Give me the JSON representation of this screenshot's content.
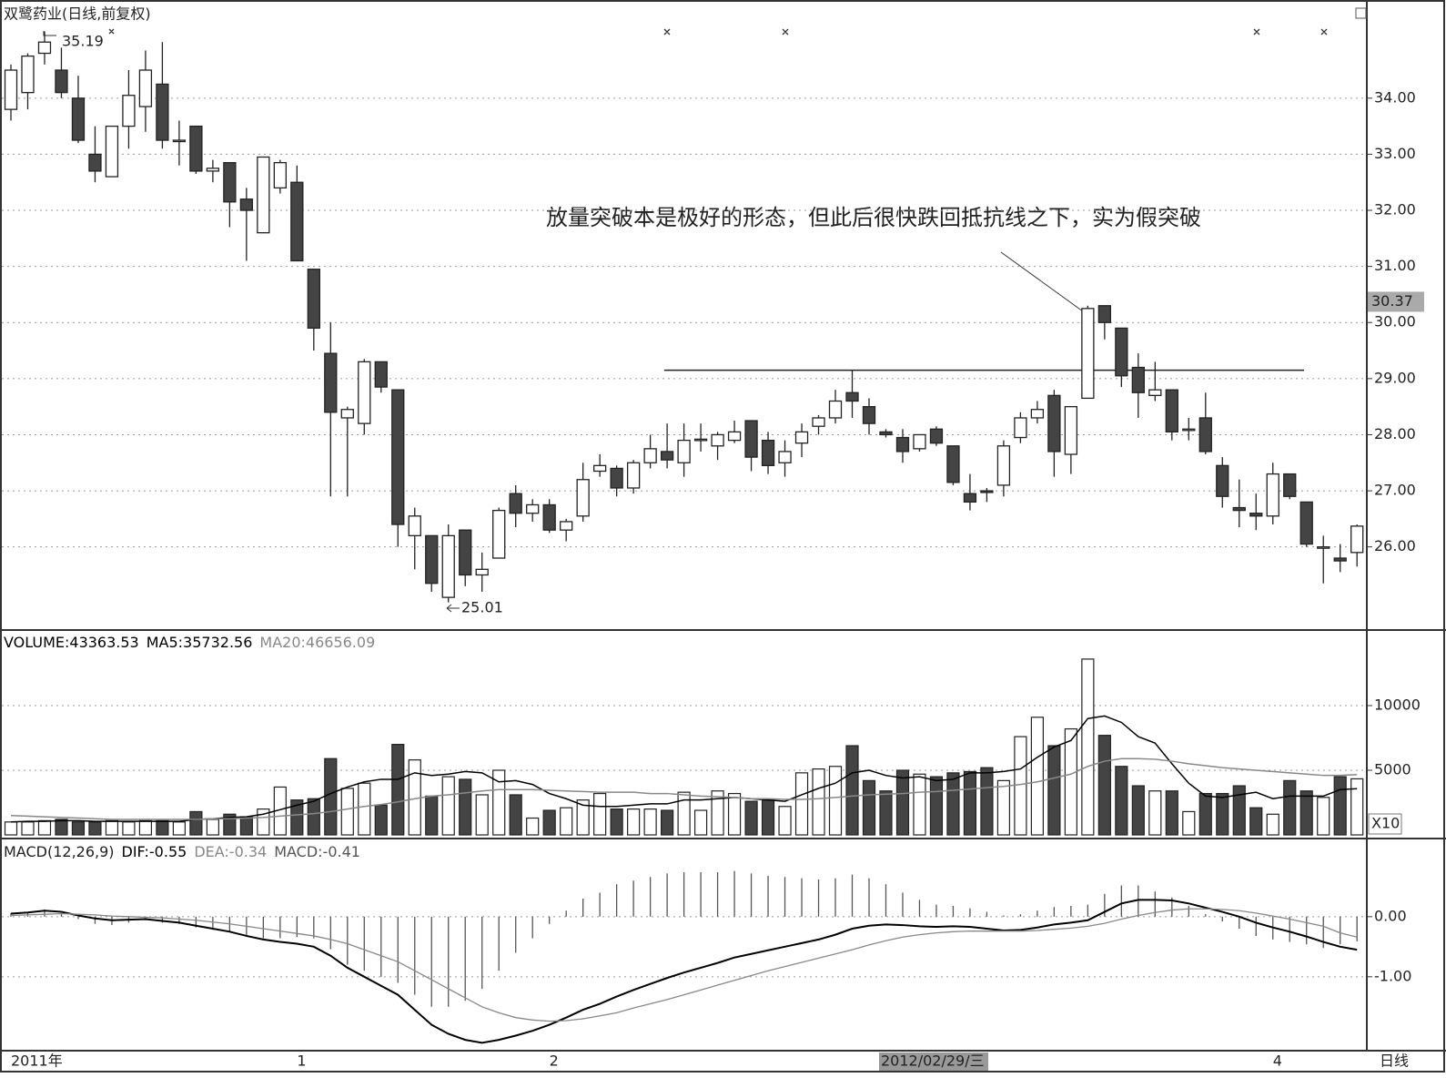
{
  "chart_data": [
    {
      "type": "candlestick",
      "title": "双鹭药业(日线,前复权)",
      "annotation": "放量突破本是极好的形态，但此后很快跌回抵抗线之下，实为假突破",
      "categories": [
        "2011年",
        null,
        null,
        null,
        null,
        null,
        null,
        null,
        null,
        null,
        null,
        null,
        null,
        null,
        null,
        null,
        null,
        "1",
        null,
        null,
        null,
        null,
        null,
        null,
        null,
        null,
        null,
        null,
        null,
        null,
        null,
        null,
        "2",
        null,
        null,
        null,
        null,
        null,
        null,
        null,
        null,
        null,
        null,
        null,
        null,
        null,
        null,
        null,
        null,
        null,
        null,
        null,
        null,
        null,
        null,
        null,
        null,
        null,
        null,
        null,
        null,
        null,
        null,
        null,
        null,
        null,
        null,
        null,
        null,
        null,
        null,
        null,
        null,
        null,
        null,
        "4",
        null,
        null,
        null,
        null,
        null
      ],
      "cursor_date": "2012/02/29/三",
      "period": "日线",
      "open": [
        33.8,
        34.1,
        34.8,
        34.5,
        34.0,
        33.0,
        32.6,
        33.5,
        33.85,
        34.25,
        33.25,
        33.5,
        32.7,
        32.85,
        32.2,
        31.6,
        32.4,
        32.5,
        30.95,
        29.45,
        28.3,
        28.2,
        29.3,
        28.8,
        26.2,
        26.2,
        25.1,
        26.3,
        25.5,
        25.8,
        26.95,
        26.6,
        26.75,
        26.3,
        26.55,
        27.35,
        27.4,
        27.05,
        27.5,
        27.7,
        27.5,
        27.92,
        27.8,
        27.9,
        28.25,
        27.9,
        27.5,
        27.85,
        28.15,
        28.3,
        28.75,
        28.5,
        28.05,
        27.95,
        27.75,
        28.1,
        27.8,
        26.95,
        27.0,
        27.1,
        27.95,
        28.3,
        28.7,
        27.65,
        28.65,
        30.3,
        29.9,
        29.2,
        28.7,
        28.8,
        28.1,
        28.3,
        27.45,
        26.7,
        26.6,
        26.55,
        27.3,
        26.8,
        26.0,
        25.8,
        25.9
      ],
      "high": [
        34.6,
        34.8,
        35.19,
        34.9,
        34.4,
        33.5,
        33.5,
        34.5,
        34.85,
        35.0,
        33.6,
        33.5,
        32.9,
        32.85,
        32.4,
        32.95,
        32.9,
        32.8,
        30.95,
        30.0,
        28.5,
        29.35,
        29.3,
        28.8,
        26.7,
        26.2,
        26.4,
        26.3,
        25.9,
        26.7,
        27.1,
        26.85,
        26.85,
        26.5,
        27.5,
        27.65,
        27.45,
        27.55,
        28.0,
        28.2,
        28.2,
        28.2,
        28.05,
        28.25,
        28.25,
        28.05,
        27.9,
        28.2,
        28.35,
        28.8,
        29.15,
        28.65,
        28.1,
        28.1,
        28.0,
        28.15,
        27.8,
        27.3,
        27.05,
        27.9,
        28.4,
        28.6,
        28.8,
        28.5,
        30.3,
        30.3,
        29.9,
        29.45,
        29.3,
        28.8,
        28.3,
        28.75,
        27.6,
        27.2,
        26.95,
        27.5,
        27.3,
        26.8,
        26.2,
        26.05,
        26.4
      ],
      "low": [
        33.6,
        33.8,
        34.6,
        34.0,
        33.2,
        32.5,
        32.6,
        33.1,
        33.4,
        33.1,
        32.8,
        32.65,
        32.5,
        31.7,
        31.1,
        31.6,
        32.3,
        31.1,
        29.5,
        26.9,
        26.9,
        28.0,
        28.75,
        26.0,
        25.6,
        25.2,
        25.01,
        25.3,
        25.2,
        25.8,
        26.35,
        26.45,
        26.25,
        26.1,
        26.45,
        27.25,
        26.9,
        26.95,
        27.4,
        27.4,
        27.25,
        27.7,
        27.55,
        27.85,
        27.35,
        27.3,
        27.25,
        27.6,
        28.0,
        28.2,
        28.3,
        28.0,
        27.95,
        27.5,
        27.7,
        27.8,
        27.1,
        26.65,
        26.8,
        26.9,
        27.85,
        28.2,
        27.25,
        27.3,
        28.65,
        29.7,
        28.85,
        28.3,
        28.6,
        27.9,
        27.9,
        27.65,
        26.7,
        26.35,
        26.3,
        26.4,
        26.85,
        26.0,
        25.35,
        25.55,
        25.65
      ],
      "close": [
        34.5,
        34.75,
        35.0,
        34.1,
        33.25,
        32.7,
        33.5,
        34.05,
        34.5,
        33.25,
        33.25,
        32.7,
        32.75,
        32.15,
        32.0,
        32.95,
        32.85,
        31.1,
        29.9,
        28.4,
        28.45,
        29.3,
        28.85,
        26.4,
        26.55,
        25.35,
        26.2,
        25.5,
        25.6,
        26.65,
        26.6,
        26.75,
        26.3,
        26.45,
        27.2,
        27.45,
        27.05,
        27.5,
        27.75,
        27.55,
        27.9,
        27.92,
        28.0,
        28.05,
        27.6,
        27.45,
        27.7,
        28.05,
        28.3,
        28.6,
        28.6,
        28.2,
        28.0,
        27.7,
        28.0,
        27.85,
        27.15,
        26.8,
        26.97,
        27.8,
        28.3,
        28.45,
        27.7,
        28.5,
        30.25,
        30.0,
        29.05,
        28.75,
        28.8,
        28.05,
        28.1,
        27.7,
        26.9,
        26.65,
        26.55,
        27.3,
        26.9,
        26.05,
        26.0,
        25.75,
        26.37
      ],
      "high_label": 35.19,
      "low_label": 25.01,
      "cursor_price": 30.37,
      "resistance": 29.15,
      "up_color": "#ffffff",
      "down_color": "#444444",
      "ylim": [
        24.55,
        35.75
      ],
      "yticks": [
        {
          "value": 26,
          "label": "26.00"
        },
        {
          "value": 27,
          "label": "27.00"
        },
        {
          "value": 28,
          "label": "28.00"
        },
        {
          "value": 29,
          "label": "29.00"
        },
        {
          "value": 30,
          "label": "30.00"
        },
        {
          "value": 31,
          "label": "31.00"
        },
        {
          "value": 32,
          "label": "32.00"
        },
        {
          "value": 33,
          "label": "33.00"
        },
        {
          "value": 34,
          "label": "34.00"
        }
      ],
      "grid": true
    },
    {
      "type": "volume",
      "unit_label": "X10",
      "series": [
        {
          "name": "VOLUME:43363.53",
          "color": "#000000",
          "values": [
            1000,
            1000,
            1100,
            1200,
            1000,
            1000,
            1100,
            1000,
            1100,
            1100,
            1000,
            1800,
            1200,
            1600,
            1400,
            2000,
            3700,
            2700,
            2800,
            5900,
            3600,
            4000,
            2300,
            7000,
            5800,
            3000,
            4500,
            4300,
            3100,
            5000,
            3100,
            1300,
            1900,
            2100,
            2700,
            3200,
            2000,
            2000,
            2000,
            1900,
            3300,
            1900,
            3400,
            3200,
            2600,
            2700,
            2200,
            4800,
            5100,
            5300,
            6900,
            4200,
            3400,
            5000,
            4700,
            4500,
            4800,
            4900,
            5200,
            4200,
            7600,
            9100,
            6900,
            8200,
            13600,
            7700,
            5300,
            3800,
            3400,
            3400,
            1800,
            3200,
            3200,
            3800,
            2100,
            1600,
            4200,
            3400,
            2900,
            4500,
            4336.353
          ]
        },
        {
          "name": "MA5:35732.56",
          "color": "#000000",
          "values": [
            1000,
            1050,
            1050,
            1100,
            1100,
            1050,
            1050,
            1050,
            1050,
            1050,
            1050,
            1200,
            1250,
            1350,
            1400,
            1600,
            1950,
            2300,
            2600,
            3200,
            3700,
            4100,
            4300,
            4300,
            4800,
            4600,
            4700,
            4900,
            4800,
            4100,
            4200,
            3900,
            3200,
            2800,
            2300,
            2200,
            2200,
            2300,
            2400,
            2400,
            2700,
            2700,
            2800,
            2900,
            2800,
            2700,
            2600,
            3100,
            3600,
            4000,
            4800,
            5000,
            4600,
            4400,
            4500,
            4200,
            4300,
            4800,
            4800,
            4900,
            5100,
            6000,
            6800,
            7300,
            9000,
            9200,
            8700,
            7600,
            7100,
            5500,
            4000,
            3000,
            2900,
            3100,
            3300,
            2800,
            3000,
            3000,
            3000,
            3500,
            3573.256
          ]
        },
        {
          "name": "MA20:46656.09",
          "color": "#888888",
          "values": [
            1500,
            1450,
            1400,
            1350,
            1300,
            1250,
            1200,
            1200,
            1200,
            1200,
            1200,
            1200,
            1250,
            1250,
            1300,
            1350,
            1450,
            1550,
            1650,
            1800,
            2000,
            2200,
            2350,
            2550,
            2800,
            3000,
            3100,
            3250,
            3400,
            3500,
            3500,
            3500,
            3450,
            3400,
            3350,
            3300,
            3300,
            3300,
            3200,
            3200,
            3100,
            3000,
            2950,
            2900,
            2800,
            2800,
            2750,
            2750,
            2800,
            2900,
            3000,
            3100,
            3150,
            3200,
            3300,
            3350,
            3450,
            3550,
            3650,
            3750,
            3900,
            4100,
            4400,
            4700,
            5300,
            5700,
            5900,
            5900,
            5850,
            5700,
            5500,
            5350,
            5200,
            5100,
            5000,
            4900,
            4800,
            4700,
            4600,
            4600,
            4665.609
          ]
        }
      ],
      "ylim": [
        0,
        15600
      ],
      "yticks": [
        5000,
        10000
      ],
      "grid": true
    },
    {
      "type": "macd",
      "title": "MACD(12,26,9)",
      "series": [
        {
          "name": "DIF:-0.55",
          "color": "#000000",
          "values": [
            0.05,
            0.07,
            0.1,
            0.08,
            0.02,
            -0.03,
            -0.06,
            -0.05,
            -0.04,
            -0.07,
            -0.1,
            -0.15,
            -0.2,
            -0.25,
            -0.32,
            -0.38,
            -0.42,
            -0.45,
            -0.5,
            -0.65,
            -0.85,
            -1.0,
            -1.15,
            -1.3,
            -1.55,
            -1.8,
            -1.95,
            -2.05,
            -2.1,
            -2.05,
            -1.98,
            -1.9,
            -1.8,
            -1.68,
            -1.55,
            -1.45,
            -1.33,
            -1.22,
            -1.12,
            -1.02,
            -0.93,
            -0.85,
            -0.77,
            -0.68,
            -0.62,
            -0.56,
            -0.5,
            -0.44,
            -0.38,
            -0.3,
            -0.2,
            -0.15,
            -0.13,
            -0.14,
            -0.16,
            -0.17,
            -0.16,
            -0.17,
            -0.2,
            -0.23,
            -0.22,
            -0.18,
            -0.13,
            -0.1,
            -0.06,
            0.08,
            0.22,
            0.28,
            0.28,
            0.27,
            0.22,
            0.15,
            0.08,
            0.0,
            -0.1,
            -0.18,
            -0.25,
            -0.33,
            -0.42,
            -0.5,
            -0.55
          ]
        },
        {
          "name": "DEA:-0.34",
          "color": "#888888",
          "values": [
            0.02,
            0.03,
            0.04,
            0.05,
            0.04,
            0.03,
            0.01,
            0.0,
            -0.01,
            -0.02,
            -0.04,
            -0.06,
            -0.09,
            -0.12,
            -0.16,
            -0.2,
            -0.24,
            -0.28,
            -0.32,
            -0.38,
            -0.45,
            -0.55,
            -0.65,
            -0.75,
            -0.9,
            -1.05,
            -1.2,
            -1.35,
            -1.5,
            -1.6,
            -1.68,
            -1.72,
            -1.74,
            -1.73,
            -1.7,
            -1.65,
            -1.6,
            -1.52,
            -1.45,
            -1.38,
            -1.3,
            -1.22,
            -1.14,
            -1.06,
            -0.98,
            -0.9,
            -0.83,
            -0.76,
            -0.69,
            -0.62,
            -0.55,
            -0.47,
            -0.4,
            -0.34,
            -0.3,
            -0.27,
            -0.25,
            -0.24,
            -0.24,
            -0.24,
            -0.24,
            -0.23,
            -0.21,
            -0.19,
            -0.16,
            -0.11,
            -0.04,
            0.02,
            0.07,
            0.11,
            0.13,
            0.13,
            0.12,
            0.1,
            0.06,
            0.01,
            -0.04,
            -0.1,
            -0.16,
            -0.27,
            -0.34
          ]
        },
        {
          "name": "MACD:-0.41",
          "color": "#555555",
          "values": [
            0.06,
            0.08,
            0.12,
            0.06,
            -0.04,
            -0.12,
            -0.14,
            -0.1,
            -0.06,
            -0.1,
            -0.12,
            -0.18,
            -0.22,
            -0.26,
            -0.32,
            -0.36,
            -0.36,
            -0.34,
            -0.36,
            -0.54,
            -0.8,
            -0.9,
            -1.0,
            -1.1,
            -1.3,
            -1.5,
            -1.5,
            -1.4,
            -1.2,
            -0.9,
            -0.6,
            -0.36,
            -0.12,
            0.1,
            0.3,
            0.4,
            0.54,
            0.6,
            0.66,
            0.72,
            0.74,
            0.74,
            0.74,
            0.76,
            0.72,
            0.68,
            0.66,
            0.64,
            0.62,
            0.64,
            0.7,
            0.64,
            0.54,
            0.4,
            0.28,
            0.2,
            0.18,
            0.14,
            0.08,
            0.02,
            0.04,
            0.1,
            0.16,
            0.18,
            0.2,
            0.38,
            0.52,
            0.52,
            0.42,
            0.32,
            0.18,
            0.04,
            -0.08,
            -0.2,
            -0.32,
            -0.38,
            -0.42,
            -0.46,
            -0.52,
            -0.46,
            -0.41
          ]
        }
      ],
      "ylim": [
        -2.2,
        1.24
      ],
      "yticks": [
        {
          "value": -1,
          "label": "-1.00"
        },
        {
          "value": 0,
          "label": "0.00"
        }
      ],
      "grid": true
    }
  ]
}
